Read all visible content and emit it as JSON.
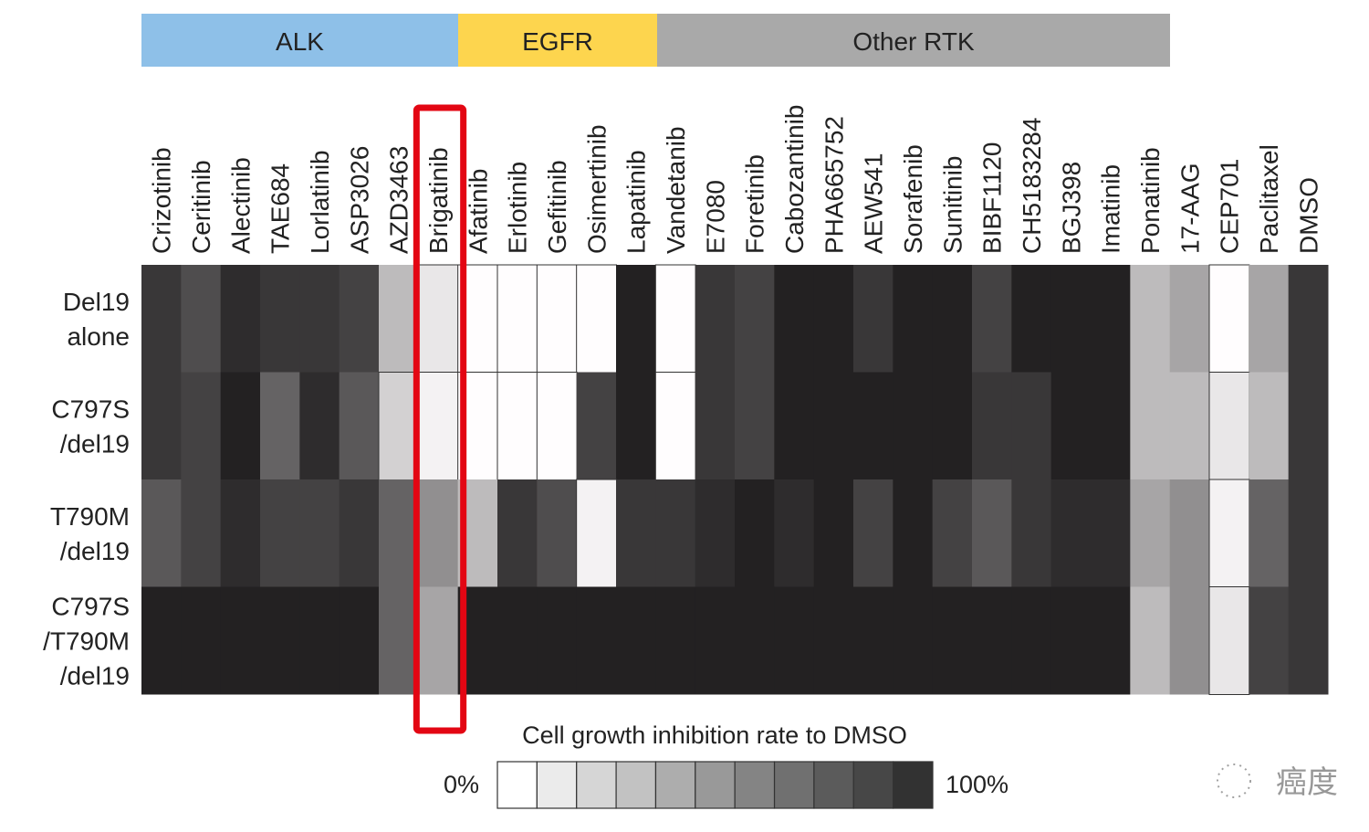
{
  "chart_data": {
    "type": "heatmap",
    "title": "",
    "groups": [
      {
        "name": "ALK",
        "color": "#8ec0e8",
        "span": 8
      },
      {
        "name": "EGFR",
        "color": "#fdd54e",
        "span": 5
      },
      {
        "name": "Other RTK",
        "color": "#a9a9a9",
        "span": 13
      }
    ],
    "columns": [
      "Crizotinib",
      "Ceritinib",
      "Alectinib",
      "TAE684",
      "Lorlatinib",
      "ASP3026",
      "AZD3463",
      "Brigatinib",
      "Afatinib",
      "Erlotinib",
      "Gefitinib",
      "Osimertinib",
      "Lapatinib",
      "Vandetanib",
      "E7080",
      "Foretinib",
      "Cabozantinib",
      "PHA665752",
      "AEW541",
      "Sorafenib",
      "Sunitinib",
      "BIBF1120",
      "CH5183284",
      "BGJ398",
      "Imatinib",
      "Ponatinib",
      "17-AAG",
      "CEP701",
      "Paclitaxel",
      "DMSO"
    ],
    "rows": [
      {
        "label_lines": [
          "Del19",
          "alone"
        ],
        "values": [
          90,
          80,
          95,
          90,
          90,
          85,
          30,
          10,
          0,
          0,
          0,
          0,
          100,
          0,
          90,
          85,
          100,
          100,
          90,
          100,
          100,
          85,
          100,
          100,
          100,
          30,
          40,
          0,
          40,
          90
        ]
      },
      {
        "label_lines": [
          "C797S",
          "/del19"
        ],
        "values": [
          90,
          85,
          100,
          70,
          95,
          75,
          20,
          5,
          0,
          0,
          0,
          85,
          100,
          0,
          90,
          85,
          100,
          100,
          100,
          100,
          100,
          90,
          90,
          100,
          100,
          30,
          30,
          10,
          30,
          90
        ]
      },
      {
        "label_lines": [
          "T790M",
          "/del19"
        ],
        "values": [
          75,
          85,
          95,
          85,
          85,
          90,
          70,
          50,
          30,
          90,
          80,
          5,
          90,
          90,
          95,
          100,
          95,
          100,
          85,
          100,
          85,
          75,
          90,
          95,
          95,
          40,
          50,
          5,
          70,
          90
        ]
      },
      {
        "label_lines": [
          "C797S",
          "/T790M",
          "/del19"
        ],
        "values": [
          100,
          100,
          100,
          100,
          100,
          100,
          70,
          40,
          100,
          100,
          100,
          100,
          100,
          100,
          100,
          100,
          100,
          100,
          100,
          100,
          100,
          100,
          100,
          100,
          100,
          30,
          50,
          10,
          85,
          90
        ]
      }
    ],
    "highlighted_column": "Brigatinib",
    "highlight_color": "#e30613",
    "legend": {
      "title": "Cell growth inhibition rate to DMSO",
      "min_label": "0%",
      "max_label": "100%",
      "steps": 11,
      "range": [
        0,
        100
      ]
    }
  },
  "watermark": "癌度"
}
